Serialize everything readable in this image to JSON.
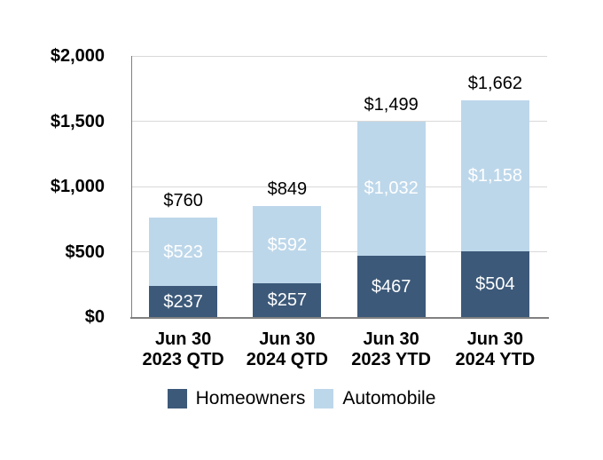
{
  "chart_data": {
    "type": "bar",
    "stacked": true,
    "categories": [
      "Jun 30\n2023 QTD",
      "Jun 30\n2024 QTD",
      "Jun 30\n2023 YTD",
      "Jun 30\n2024 YTD"
    ],
    "series": [
      {
        "name": "Homeowners",
        "color": "#3C5979",
        "values": [
          237,
          257,
          467,
          504
        ],
        "labels": [
          "$237",
          "$257",
          "$467",
          "$504"
        ]
      },
      {
        "name": "Automobile",
        "color": "#BDD7EA",
        "values": [
          523,
          592,
          1032,
          1158
        ],
        "labels": [
          "$523",
          "$592",
          "$1,032",
          "$1,158"
        ]
      }
    ],
    "totals": [
      760,
      849,
      1499,
      1662
    ],
    "total_labels": [
      "$760",
      "$849",
      "$1,499",
      "$1,662"
    ],
    "y_axis": {
      "min": 0,
      "max": 2000,
      "tick_values": [
        0,
        500,
        1000,
        1500,
        2000
      ],
      "ticks": [
        "$0",
        "$500",
        "$1,000",
        "$1,500",
        "$2,000"
      ]
    },
    "legend": [
      "Homeowners",
      "Automobile"
    ],
    "legend_position": "bottom",
    "grid": true,
    "colors": {
      "grid": "#D9D9D9",
      "axis": "#808080",
      "total_label": "#000000",
      "segment_label": "#FFFFFF",
      "background": "#FFFFFF"
    }
  }
}
